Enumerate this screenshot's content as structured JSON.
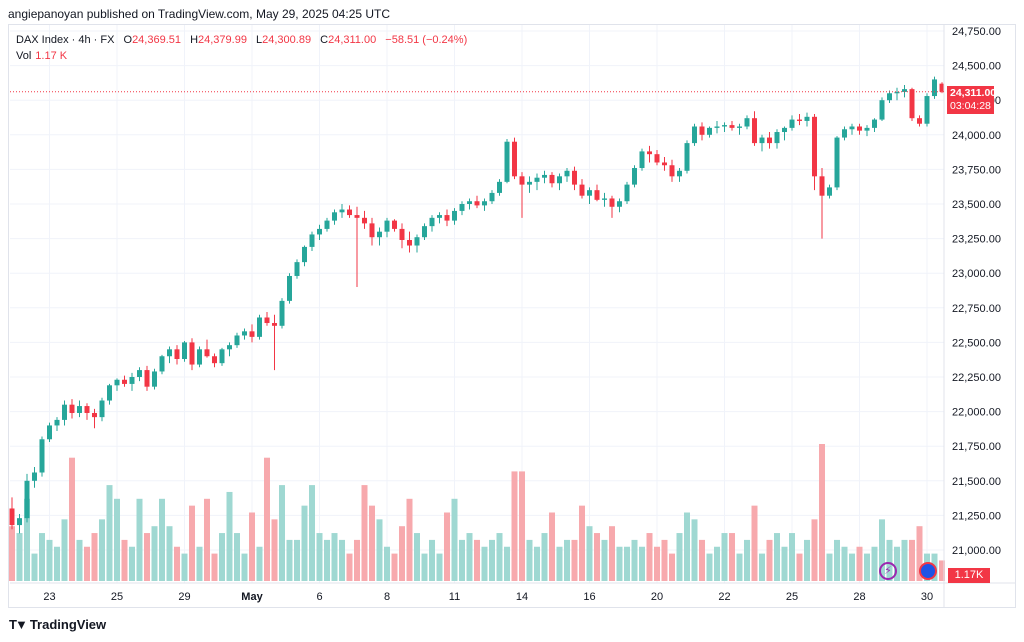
{
  "header": {
    "attribution": "angiepanoyan published on TradingView.com, May 29, 2025 04:25 UTC"
  },
  "legend": {
    "symbol": "DAX Index · 4h · FX",
    "open_label": "O",
    "open": "24,369.51",
    "high_label": "H",
    "high": "24,379.99",
    "low_label": "L",
    "low": "24,300.89",
    "close_label": "C",
    "close": "24,311.00",
    "change": "−58.51 (−0.24%)",
    "vol_label": "Vol",
    "vol": "1.17 K"
  },
  "price_tag": {
    "price": "24,311.00",
    "countdown": "03:04:28"
  },
  "volume_tag": "1.17K",
  "footer": {
    "logo_text": "TradingView"
  },
  "colors": {
    "up": "#26a69a",
    "down": "#f23645",
    "vol_up": "#9fd8d2",
    "vol_down": "#f7a9ad",
    "grid": "#f0f3fa"
  },
  "icons": [
    "lightning-icon",
    "flag-icon",
    "tradingview-logo-icon"
  ],
  "chart_data": {
    "type": "candlestick",
    "title": "DAX Index · 4h · FX",
    "y_ticks": [
      "24,750.00",
      "24,500.00",
      "24,250.00",
      "24,000.00",
      "23,750.00",
      "23,500.00",
      "23,250.00",
      "23,000.00",
      "22,750.00",
      "22,500.00",
      "22,250.00",
      "22,000.00",
      "21,750.00",
      "21,500.00",
      "21,250.00",
      "21,000.00"
    ],
    "x_ticks": [
      {
        "label": "23",
        "bar": 5
      },
      {
        "label": "25",
        "bar": 14
      },
      {
        "label": "29",
        "bar": 23
      },
      {
        "label": "May",
        "bar": 32
      },
      {
        "label": "6",
        "bar": 41
      },
      {
        "label": "8",
        "bar": 50
      },
      {
        "label": "11",
        "bar": 59
      },
      {
        "label": "14",
        "bar": 68
      },
      {
        "label": "16",
        "bar": 77
      },
      {
        "label": "20",
        "bar": 86
      },
      {
        "label": "22",
        "bar": 95
      },
      {
        "label": "25",
        "bar": 104
      },
      {
        "label": "28",
        "bar": 113
      },
      {
        "label": "30",
        "bar": 122
      }
    ],
    "ylim": [
      20800,
      24900
    ],
    "last_price": 24311.0,
    "candles": [
      [
        21300,
        21380,
        21150,
        21180,
        0.4
      ],
      [
        21180,
        21260,
        21120,
        21230,
        0.35
      ],
      [
        21230,
        21550,
        21200,
        21500,
        0.6
      ],
      [
        21500,
        21600,
        21450,
        21560,
        0.2
      ],
      [
        21560,
        21820,
        21530,
        21800,
        0.35
      ],
      [
        21800,
        21920,
        21780,
        21900,
        0.3
      ],
      [
        21900,
        21960,
        21860,
        21940,
        0.25
      ],
      [
        21940,
        22080,
        21900,
        22050,
        0.45
      ],
      [
        22050,
        22090,
        21950,
        21990,
        0.9
      ],
      [
        21990,
        22080,
        21960,
        22040,
        0.3
      ],
      [
        22040,
        22060,
        21940,
        21990,
        0.25
      ],
      [
        21990,
        22020,
        21880,
        21960,
        0.35
      ],
      [
        21960,
        22100,
        21930,
        22080,
        0.45
      ],
      [
        22080,
        22200,
        22050,
        22190,
        0.7
      ],
      [
        22190,
        22240,
        22150,
        22230,
        0.6
      ],
      [
        22230,
        22260,
        22180,
        22200,
        0.3
      ],
      [
        22200,
        22280,
        22150,
        22250,
        0.25
      ],
      [
        22250,
        22320,
        22220,
        22300,
        0.6
      ],
      [
        22300,
        22330,
        22150,
        22180,
        0.35
      ],
      [
        22180,
        22310,
        22160,
        22290,
        0.4
      ],
      [
        22290,
        22410,
        22270,
        22400,
        0.6
      ],
      [
        22400,
        22470,
        22350,
        22450,
        0.4
      ],
      [
        22450,
        22480,
        22340,
        22380,
        0.25
      ],
      [
        22380,
        22510,
        22360,
        22500,
        0.2
      ],
      [
        22500,
        22530,
        22300,
        22340,
        0.55
      ],
      [
        22340,
        22470,
        22320,
        22450,
        0.25
      ],
      [
        22450,
        22520,
        22390,
        22400,
        0.6
      ],
      [
        22400,
        22420,
        22320,
        22350,
        0.2
      ],
      [
        22350,
        22460,
        22330,
        22450,
        0.35
      ],
      [
        22450,
        22500,
        22400,
        22480,
        0.65
      ],
      [
        22480,
        22570,
        22460,
        22550,
        0.35
      ],
      [
        22550,
        22600,
        22520,
        22580,
        0.2
      ],
      [
        22580,
        22630,
        22500,
        22540,
        0.5
      ],
      [
        22540,
        22700,
        22520,
        22680,
        0.25
      ],
      [
        22680,
        22720,
        22620,
        22640,
        0.9
      ],
      [
        22640,
        22700,
        22300,
        22620,
        0.45
      ],
      [
        22620,
        22820,
        22600,
        22800,
        0.7
      ],
      [
        22800,
        23000,
        22780,
        22980,
        0.3
      ],
      [
        22980,
        23100,
        22960,
        23080,
        0.3
      ],
      [
        23080,
        23200,
        23050,
        23190,
        0.55
      ],
      [
        23190,
        23300,
        23160,
        23280,
        0.7
      ],
      [
        23280,
        23350,
        23240,
        23320,
        0.35
      ],
      [
        23320,
        23400,
        23300,
        23380,
        0.3
      ],
      [
        23380,
        23460,
        23350,
        23440,
        0.35
      ],
      [
        23440,
        23500,
        23400,
        23460,
        0.3
      ],
      [
        23460,
        23490,
        23400,
        23420,
        0.2
      ],
      [
        23420,
        23480,
        22900,
        23400,
        0.3
      ],
      [
        23400,
        23450,
        23320,
        23360,
        0.7
      ],
      [
        23360,
        23400,
        23200,
        23260,
        0.55
      ],
      [
        23260,
        23330,
        23200,
        23300,
        0.45
      ],
      [
        23300,
        23400,
        23260,
        23380,
        0.25
      ],
      [
        23380,
        23390,
        23300,
        23320,
        0.2
      ],
      [
        23320,
        23360,
        23180,
        23240,
        0.4
      ],
      [
        23240,
        23300,
        23150,
        23200,
        0.6
      ],
      [
        23200,
        23280,
        23150,
        23260,
        0.35
      ],
      [
        23260,
        23360,
        23240,
        23340,
        0.2
      ],
      [
        23340,
        23420,
        23300,
        23400,
        0.3
      ],
      [
        23400,
        23440,
        23360,
        23420,
        0.2
      ],
      [
        23420,
        23460,
        23340,
        23380,
        0.5
      ],
      [
        23380,
        23470,
        23350,
        23450,
        0.6
      ],
      [
        23450,
        23520,
        23420,
        23500,
        0.3
      ],
      [
        23500,
        23540,
        23460,
        23520,
        0.35
      ],
      [
        23520,
        23560,
        23470,
        23490,
        0.3
      ],
      [
        23490,
        23540,
        23450,
        23520,
        0.25
      ],
      [
        23520,
        23600,
        23500,
        23580,
        0.3
      ],
      [
        23580,
        23680,
        23560,
        23660,
        0.35
      ],
      [
        23660,
        23970,
        23650,
        23950,
        0.25
      ],
      [
        23950,
        23980,
        23680,
        23700,
        0.8
      ],
      [
        23700,
        23730,
        23400,
        23640,
        0.8
      ],
      [
        23640,
        23700,
        23580,
        23660,
        0.3
      ],
      [
        23660,
        23720,
        23600,
        23690,
        0.25
      ],
      [
        23690,
        23740,
        23650,
        23710,
        0.35
      ],
      [
        23710,
        23730,
        23620,
        23650,
        0.5
      ],
      [
        23650,
        23720,
        23600,
        23700,
        0.25
      ],
      [
        23700,
        23760,
        23660,
        23740,
        0.3
      ],
      [
        23740,
        23770,
        23600,
        23640,
        0.3
      ],
      [
        23640,
        23680,
        23540,
        23560,
        0.55
      ],
      [
        23560,
        23620,
        23500,
        23600,
        0.4
      ],
      [
        23600,
        23640,
        23520,
        23530,
        0.35
      ],
      [
        23530,
        23580,
        23480,
        23540,
        0.3
      ],
      [
        23540,
        23560,
        23400,
        23480,
        0.4
      ],
      [
        23480,
        23540,
        23440,
        23520,
        0.25
      ],
      [
        23520,
        23660,
        23500,
        23640,
        0.25
      ],
      [
        23640,
        23780,
        23620,
        23760,
        0.3
      ],
      [
        23760,
        23900,
        23740,
        23880,
        0.25
      ],
      [
        23880,
        23920,
        23800,
        23860,
        0.35
      ],
      [
        23860,
        23890,
        23780,
        23800,
        0.25
      ],
      [
        23800,
        23840,
        23740,
        23780,
        0.3
      ],
      [
        23780,
        23820,
        23660,
        23700,
        0.2
      ],
      [
        23700,
        23760,
        23660,
        23740,
        0.35
      ],
      [
        23740,
        23960,
        23720,
        23940,
        0.5
      ],
      [
        23940,
        24080,
        23920,
        24060,
        0.45
      ],
      [
        24060,
        24090,
        23960,
        24000,
        0.3
      ],
      [
        24000,
        24060,
        23980,
        24050,
        0.2
      ],
      [
        24050,
        24100,
        24010,
        24060,
        0.25
      ],
      [
        24060,
        24090,
        24020,
        24070,
        0.35
      ],
      [
        24070,
        24100,
        24030,
        24050,
        0.35
      ],
      [
        24050,
        24080,
        24000,
        24060,
        0.2
      ],
      [
        24060,
        24140,
        24040,
        24120,
        0.3
      ],
      [
        24120,
        24170,
        23920,
        23940,
        0.55
      ],
      [
        23940,
        24000,
        23880,
        23980,
        0.2
      ],
      [
        23980,
        24020,
        23900,
        23940,
        0.3
      ],
      [
        23940,
        24040,
        23900,
        24020,
        0.35
      ],
      [
        24020,
        24060,
        23960,
        24050,
        0.25
      ],
      [
        24050,
        24140,
        24030,
        24110,
        0.35
      ],
      [
        24110,
        24150,
        24070,
        24100,
        0.2
      ],
      [
        24100,
        24160,
        24060,
        24130,
        0.3
      ],
      [
        24130,
        24150,
        23600,
        23700,
        0.45
      ],
      [
        23700,
        23760,
        23250,
        23560,
        1.0
      ],
      [
        23560,
        23640,
        23540,
        23620,
        0.2
      ],
      [
        23620,
        23990,
        23600,
        23980,
        0.3
      ],
      [
        23980,
        24060,
        23960,
        24040,
        0.25
      ],
      [
        24040,
        24080,
        24000,
        24060,
        0.2
      ],
      [
        24060,
        24080,
        24000,
        24030,
        0.25
      ],
      [
        24030,
        24070,
        23990,
        24050,
        0.2
      ],
      [
        24050,
        24120,
        24020,
        24110,
        0.25
      ],
      [
        24110,
        24270,
        24100,
        24250,
        0.45
      ],
      [
        24250,
        24320,
        24230,
        24300,
        0.3
      ],
      [
        24300,
        24340,
        24250,
        24310,
        0.25
      ],
      [
        24310,
        24360,
        24270,
        24330,
        0.3
      ],
      [
        24330,
        24340,
        24100,
        24120,
        0.3
      ],
      [
        24120,
        24140,
        24060,
        24080,
        0.4
      ],
      [
        24080,
        24300,
        24060,
        24280,
        0.2
      ],
      [
        24280,
        24420,
        24260,
        24400,
        0.2
      ],
      [
        24369.51,
        24379.99,
        24300.89,
        24311.0,
        0.15
      ]
    ]
  }
}
